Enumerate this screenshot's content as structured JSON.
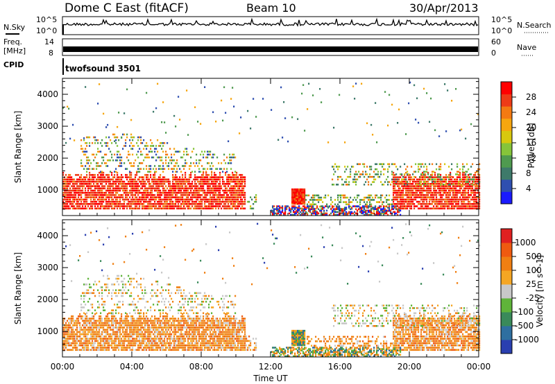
{
  "header": {
    "station": "Dome C East (fitACF)",
    "beam": "Beam 10",
    "date": "30/Apr/2013"
  },
  "panels": {
    "nsky_label": "N.Sky",
    "nsky_ticks": [
      "10^5",
      "10^0"
    ],
    "nsearch_label": "N.Search",
    "nsearch_ticks": [
      "10^5",
      "10^0"
    ],
    "freq_label_1": "Freq.",
    "freq_label_2": "[MHz]",
    "freq_ticks": [
      "14",
      "8"
    ],
    "nave_label": "Nave",
    "nave_ticks": [
      "60",
      "0"
    ],
    "cpid_label": "CPID",
    "cpid_value": "twofsound 3501"
  },
  "chart_data": [
    {
      "type": "heatmap",
      "name": "power",
      "ylabel": "Slant Range [km]",
      "xlabel": "Time UT",
      "x_ticks": [
        "00:00",
        "04:00",
        "08:00",
        "12:00",
        "16:00",
        "20:00",
        "00:00"
      ],
      "x_range_hours": [
        0,
        24
      ],
      "y_ticks": [
        1000,
        2000,
        3000,
        4000
      ],
      "ylim": [
        200,
        4500
      ],
      "colorbar_label": "Power [dB]",
      "colorbar_ticks": [
        "4",
        "8",
        "12",
        "16",
        "20",
        "24",
        "28"
      ],
      "colorbar_colors": [
        "#1a1aff",
        "#2f4fb0",
        "#3e7a6a",
        "#4f9a4f",
        "#86c43a",
        "#d7c80e",
        "#f6a60f",
        "#f47a12",
        "#ee3b17",
        "#ff0000"
      ]
    },
    {
      "type": "heatmap",
      "name": "velocity",
      "ylabel": "Slant Range [km]",
      "xlabel": "Time UT",
      "x_ticks": [
        "00:00",
        "04:00",
        "08:00",
        "12:00",
        "16:00",
        "20:00",
        "00:00"
      ],
      "x_range_hours": [
        0,
        24
      ],
      "y_ticks": [
        1000,
        2000,
        3000,
        4000
      ],
      "ylim": [
        200,
        4500
      ],
      "colorbar_label": "Velocity [m s^-1]",
      "colorbar_ticks": [
        "1000",
        "500",
        "100",
        "25",
        "-25",
        "-100",
        "-500",
        "-1000"
      ],
      "colorbar_colors": [
        "#2a3fb0",
        "#2f6fa0",
        "#3a8a5a",
        "#5fb43a",
        "#c8c8c8",
        "#f5a623",
        "#f07f12",
        "#ef5a10",
        "#e02020"
      ]
    }
  ],
  "colors": {
    "power_high": "#ff0000",
    "power_mid": "#f47a12",
    "power_low": "#3e7a6a",
    "velocity_ground": "#c8c8c8",
    "velocity_neg": "#f07f12"
  }
}
